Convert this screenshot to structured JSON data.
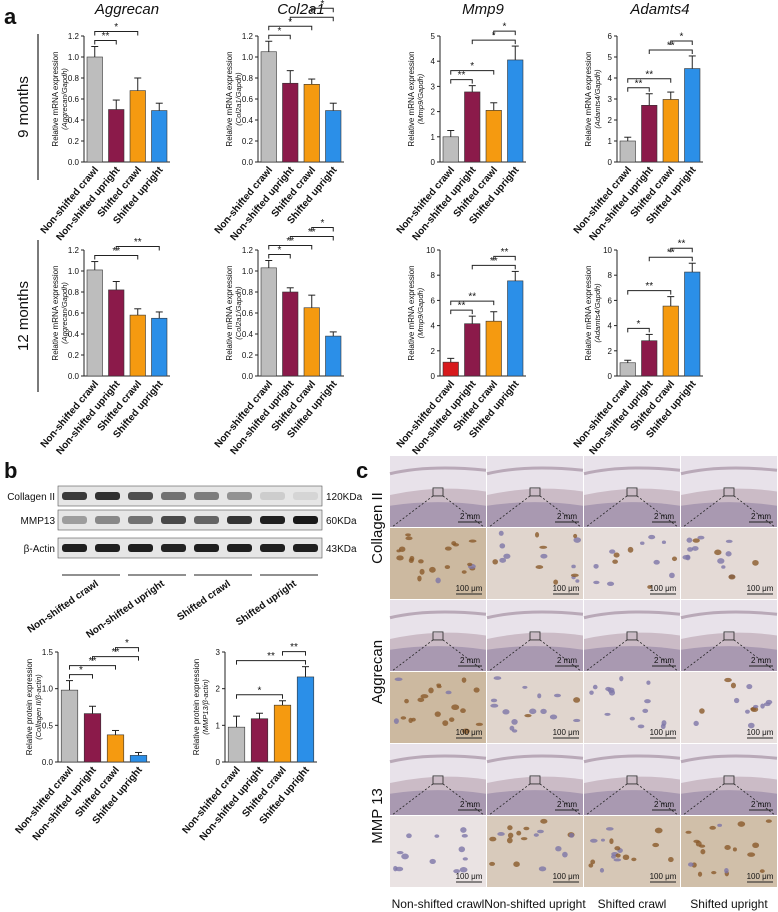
{
  "figure": {
    "panel_a": "a",
    "panel_b": "b",
    "panel_c": "c",
    "row_9m": "9 months",
    "row_12m": "12 months"
  },
  "groups": [
    "Non-shifted  crawl",
    "Non-shifted upright",
    "Shifted crawl",
    "Shifted upright"
  ],
  "colors": {
    "grey": "#bdbdbd",
    "red": "#d7191c",
    "maroon": "#8b1a4a",
    "orange": "#f59a10",
    "blue": "#2b8fe8"
  },
  "chart_data": [
    {
      "id": "a9_aggrecan",
      "type": "bar",
      "title": "Aggrecan",
      "ylabel_l1": "Relative mRNA expression",
      "ylabel_l2": "(Aggrecan/Gapdh)",
      "ylim": [
        0,
        1.2
      ],
      "yticks": [
        "0.0",
        "0.2",
        "0.4",
        "0.6",
        "0.8",
        "1.0",
        "1.2"
      ],
      "values": [
        1.0,
        0.5,
        0.68,
        0.49
      ],
      "errors": [
        0.1,
        0.09,
        0.12,
        0.07
      ],
      "colors": [
        "grey",
        "maroon",
        "orange",
        "blue"
      ],
      "sig": [
        {
          "a": 0,
          "b": 1,
          "label": "**"
        },
        {
          "a": 0,
          "b": 2,
          "label": "*"
        }
      ]
    },
    {
      "id": "a9_col2a1",
      "type": "bar",
      "title": "Col2a1",
      "ylabel_l1": "Relative mRNA expression",
      "ylabel_l2": "(Col2a1/Gapdh)",
      "ylim": [
        0,
        1.2
      ],
      "yticks": [
        "0.0",
        "0.2",
        "0.4",
        "0.6",
        "0.8",
        "1.0",
        "1.2"
      ],
      "values": [
        1.05,
        0.75,
        0.74,
        0.49
      ],
      "errors": [
        0.1,
        0.12,
        0.05,
        0.07
      ],
      "colors": [
        "grey",
        "maroon",
        "orange",
        "blue"
      ],
      "sig": [
        {
          "a": 0,
          "b": 1,
          "label": "*"
        },
        {
          "a": 0,
          "b": 2,
          "label": "*"
        },
        {
          "a": 1,
          "b": 3,
          "label": "*"
        },
        {
          "a": 2,
          "b": 3,
          "label": "*"
        }
      ]
    },
    {
      "id": "a9_mmp9",
      "type": "bar",
      "title": "Mmp9",
      "ylabel_l1": "Relative mRNA expression",
      "ylabel_l2": "(Mmp9/Gapdh)",
      "ylim": [
        0,
        5
      ],
      "yticks": [
        "0",
        "1",
        "2",
        "3",
        "4",
        "5"
      ],
      "values": [
        1.0,
        2.78,
        2.05,
        4.05
      ],
      "errors": [
        0.25,
        0.25,
        0.3,
        0.55
      ],
      "colors": [
        "grey",
        "maroon",
        "orange",
        "blue"
      ],
      "sig": [
        {
          "a": 0,
          "b": 1,
          "label": "**"
        },
        {
          "a": 0,
          "b": 2,
          "label": "*"
        },
        {
          "a": 1,
          "b": 3,
          "label": "*"
        },
        {
          "a": 2,
          "b": 3,
          "label": "*"
        }
      ]
    },
    {
      "id": "a9_adamts4",
      "type": "bar",
      "title": "Adamts4",
      "ylabel_l1": "Relative mRNA expression",
      "ylabel_l2": "(Adamts4/Gapdh)",
      "ylim": [
        0,
        6
      ],
      "yticks": [
        "0",
        "1",
        "2",
        "3",
        "4",
        "5",
        "6"
      ],
      "values": [
        1.0,
        2.7,
        2.98,
        4.45
      ],
      "errors": [
        0.18,
        0.55,
        0.35,
        0.6
      ],
      "colors": [
        "grey",
        "maroon",
        "orange",
        "blue"
      ],
      "sig": [
        {
          "a": 0,
          "b": 1,
          "label": "**"
        },
        {
          "a": 0,
          "b": 2,
          "label": "**"
        },
        {
          "a": 1,
          "b": 3,
          "label": "**"
        },
        {
          "a": 2,
          "b": 3,
          "label": "*"
        }
      ]
    },
    {
      "id": "a12_aggrecan",
      "type": "bar",
      "title": "",
      "ylabel_l1": "Relative mRNA expression",
      "ylabel_l2": "(Aggrecan/Gapdh)",
      "ylim": [
        0,
        1.2
      ],
      "yticks": [
        "0.0",
        "0.2",
        "0.4",
        "0.6",
        "0.8",
        "1.0",
        "1.2"
      ],
      "values": [
        1.01,
        0.82,
        0.58,
        0.55
      ],
      "errors": [
        0.08,
        0.08,
        0.06,
        0.06
      ],
      "colors": [
        "grey",
        "maroon",
        "orange",
        "blue"
      ],
      "sig": [
        {
          "a": 0,
          "b": 2,
          "label": "**"
        },
        {
          "a": 1,
          "b": 3,
          "label": "**"
        }
      ]
    },
    {
      "id": "a12_col2a1",
      "type": "bar",
      "title": "",
      "ylabel_l1": "Relative mRNA expression",
      "ylabel_l2": "(Col2a1/Gapdh)",
      "ylim": [
        0,
        1.2
      ],
      "yticks": [
        "0.0",
        "0.2",
        "0.4",
        "0.6",
        "0.8",
        "1.0",
        "1.2"
      ],
      "values": [
        1.03,
        0.8,
        0.65,
        0.38
      ],
      "errors": [
        0.07,
        0.04,
        0.12,
        0.04
      ],
      "colors": [
        "grey",
        "maroon",
        "orange",
        "blue"
      ],
      "sig": [
        {
          "a": 0,
          "b": 1,
          "label": "*"
        },
        {
          "a": 0,
          "b": 2,
          "label": "**"
        },
        {
          "a": 1,
          "b": 3,
          "label": "**"
        },
        {
          "a": 2,
          "b": 3,
          "label": "*"
        }
      ]
    },
    {
      "id": "a12_mmp9",
      "type": "bar",
      "title": "",
      "ylabel_l1": "Relative mRNA expression",
      "ylabel_l2": "(Mmp9/Gapdh)",
      "ylim": [
        0,
        10
      ],
      "yticks": [
        "0",
        "2",
        "4",
        "6",
        "8",
        "10"
      ],
      "values": [
        1.1,
        4.15,
        4.35,
        7.55
      ],
      "errors": [
        0.3,
        0.6,
        0.75,
        0.75
      ],
      "colors": [
        "red",
        "maroon",
        "orange",
        "blue"
      ],
      "sig": [
        {
          "a": 0,
          "b": 1,
          "label": "**"
        },
        {
          "a": 0,
          "b": 2,
          "label": "**"
        },
        {
          "a": 1,
          "b": 3,
          "label": "**"
        },
        {
          "a": 2,
          "b": 3,
          "label": "**"
        }
      ]
    },
    {
      "id": "a12_adamts4",
      "type": "bar",
      "title": "",
      "ylabel_l1": "Relative mRNA expression",
      "ylabel_l2": "(Adamts4/Gapdh)",
      "ylim": [
        0,
        10
      ],
      "yticks": [
        "0",
        "2",
        "4",
        "6",
        "8",
        "10"
      ],
      "values": [
        1.05,
        2.8,
        5.55,
        8.25
      ],
      "errors": [
        0.2,
        0.5,
        0.75,
        0.7
      ],
      "colors": [
        "grey",
        "maroon",
        "orange",
        "blue"
      ],
      "sig": [
        {
          "a": 0,
          "b": 1,
          "label": "*"
        },
        {
          "a": 0,
          "b": 2,
          "label": "**"
        },
        {
          "a": 1,
          "b": 3,
          "label": "**"
        },
        {
          "a": 2,
          "b": 3,
          "label": "**"
        }
      ]
    },
    {
      "id": "b_collagen",
      "type": "bar",
      "title": "",
      "ylabel_l1": "Relative protein expression",
      "ylabel_l2": "(Collagen II/β-actin)",
      "ylim": [
        0,
        1.5
      ],
      "yticks": [
        "0.0",
        "0.5",
        "1.0",
        "1.5"
      ],
      "values": [
        0.98,
        0.66,
        0.37,
        0.09
      ],
      "errors": [
        0.13,
        0.1,
        0.06,
        0.04
      ],
      "colors": [
        "grey",
        "maroon",
        "orange",
        "blue"
      ],
      "sig": [
        {
          "a": 0,
          "b": 1,
          "label": "*"
        },
        {
          "a": 0,
          "b": 2,
          "label": "**"
        },
        {
          "a": 1,
          "b": 3,
          "label": "**"
        },
        {
          "a": 2,
          "b": 3,
          "label": "*"
        }
      ]
    },
    {
      "id": "b_mmp13",
      "type": "bar",
      "title": "",
      "ylabel_l1": "Relative protein expression",
      "ylabel_l2": "(MMP13/β-actin)",
      "ylim": [
        0,
        3
      ],
      "yticks": [
        "0",
        "1",
        "2",
        "3"
      ],
      "values": [
        0.95,
        1.18,
        1.55,
        2.32
      ],
      "errors": [
        0.3,
        0.15,
        0.12,
        0.28
      ],
      "colors": [
        "grey",
        "maroon",
        "orange",
        "blue"
      ],
      "sig": [
        {
          "a": 0,
          "b": 2,
          "label": "*"
        },
        {
          "a": 0,
          "b": 3,
          "label": "**"
        },
        {
          "a": 2,
          "b": 3,
          "label": "**"
        }
      ]
    }
  ],
  "western": {
    "rows": [
      {
        "name": "Collagen II",
        "kda": "120KDa",
        "intensity": [
          0.82,
          0.86,
          0.72,
          0.55,
          0.5,
          0.4,
          0.12,
          0.08
        ]
      },
      {
        "name": "MMP13",
        "kda": "60KDa",
        "intensity": [
          0.35,
          0.45,
          0.55,
          0.75,
          0.62,
          0.85,
          0.95,
          0.98
        ]
      },
      {
        "name": "β-Actin",
        "kda": "43KDa",
        "intensity": [
          0.95,
          0.95,
          0.95,
          0.93,
          0.95,
          0.95,
          0.95,
          0.95
        ]
      }
    ]
  },
  "histology": {
    "rows": [
      "Collagen II",
      "Aggrecan",
      "MMP 13"
    ],
    "cols": [
      "Non-shifted  crawl",
      "Non-shifted upright",
      "Shifted crawl",
      "Shifted upright"
    ],
    "scale_low": "2 mm",
    "scale_high": "100 μm",
    "stain_level": [
      [
        0.85,
        0.35,
        0.2,
        0.25
      ],
      [
        0.85,
        0.35,
        0.2,
        0.15
      ],
      [
        0.1,
        0.55,
        0.6,
        0.75
      ]
    ]
  }
}
